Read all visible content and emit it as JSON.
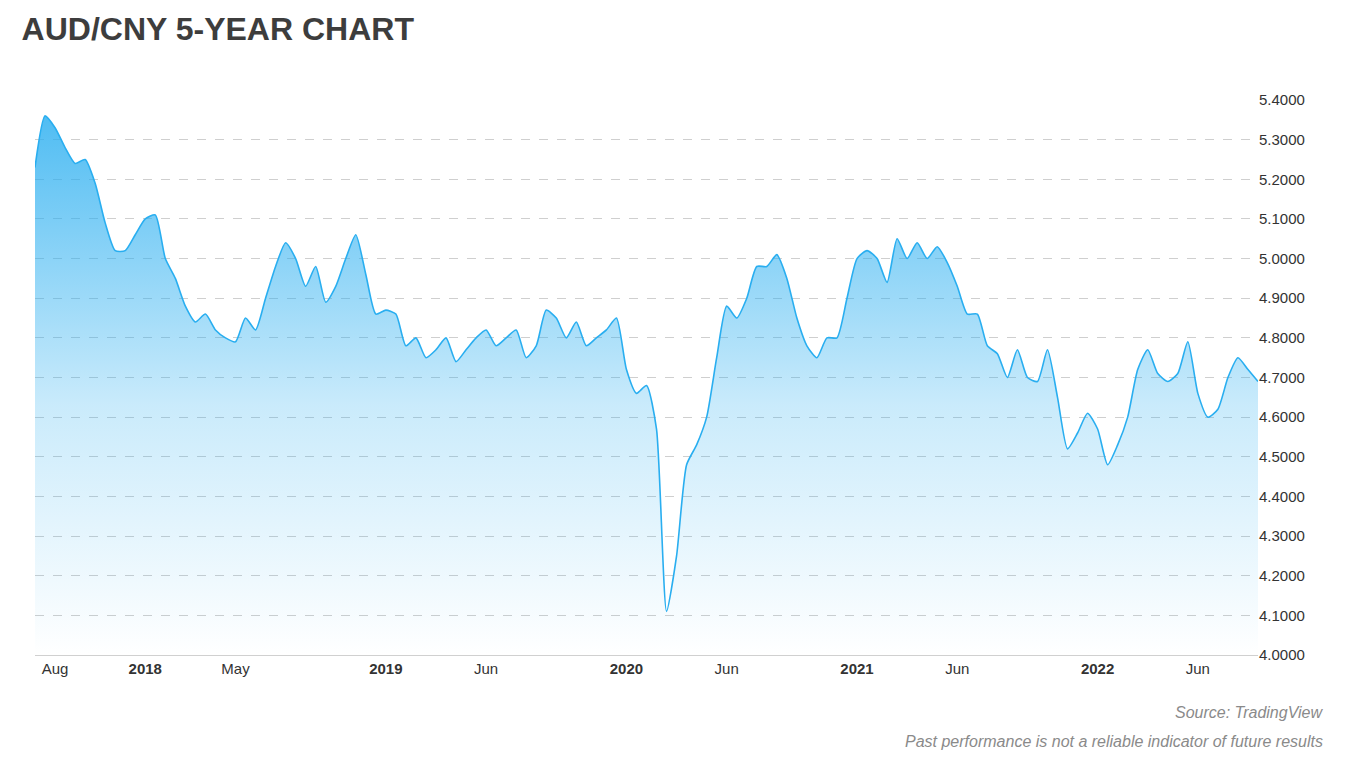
{
  "chart_data": {
    "type": "area",
    "title": "AUD/CNY 5-YEAR CHART",
    "categories": [
      null,
      null,
      "Aug",
      null,
      null,
      null,
      null,
      null,
      null,
      null,
      null,
      "2018",
      null,
      null,
      null,
      null,
      null,
      null,
      null,
      null,
      "May",
      null,
      null,
      null,
      null,
      null,
      null,
      null,
      null,
      null,
      null,
      null,
      null,
      null,
      null,
      "2019",
      null,
      null,
      null,
      null,
      null,
      null,
      null,
      null,
      null,
      "Jun",
      null,
      null,
      null,
      null,
      null,
      null,
      null,
      null,
      null,
      null,
      null,
      null,
      null,
      "2020",
      null,
      null,
      null,
      null,
      null,
      null,
      null,
      null,
      null,
      "Jun",
      null,
      null,
      null,
      null,
      null,
      null,
      null,
      null,
      null,
      null,
      null,
      null,
      "2021",
      null,
      null,
      null,
      null,
      null,
      null,
      null,
      null,
      null,
      "Jun",
      null,
      null,
      null,
      null,
      null,
      null,
      null,
      null,
      null,
      null,
      null,
      null,
      null,
      "2022",
      null,
      null,
      null,
      null,
      null,
      null,
      null,
      null,
      null,
      "Jun",
      null,
      null,
      null,
      null,
      null,
      null
    ],
    "values": [
      5.23,
      5.36,
      5.33,
      5.28,
      5.24,
      5.25,
      5.19,
      5.09,
      5.02,
      5.02,
      5.06,
      5.1,
      5.11,
      5.0,
      4.95,
      4.88,
      4.84,
      4.86,
      4.82,
      4.8,
      4.79,
      4.85,
      4.82,
      4.9,
      4.98,
      5.04,
      5.0,
      4.93,
      4.98,
      4.89,
      4.93,
      5.0,
      5.06,
      4.96,
      4.86,
      4.87,
      4.86,
      4.78,
      4.8,
      4.75,
      4.77,
      4.8,
      4.74,
      4.77,
      4.8,
      4.82,
      4.78,
      4.8,
      4.82,
      4.75,
      4.78,
      4.87,
      4.85,
      4.8,
      4.84,
      4.78,
      4.8,
      4.82,
      4.85,
      4.72,
      4.66,
      4.68,
      4.57,
      4.11,
      4.25,
      4.48,
      4.53,
      4.6,
      4.75,
      4.88,
      4.85,
      4.9,
      4.98,
      4.98,
      5.01,
      4.95,
      4.85,
      4.78,
      4.75,
      4.8,
      4.8,
      4.9,
      5.0,
      5.02,
      5.0,
      4.94,
      5.05,
      5.0,
      5.04,
      5.0,
      5.03,
      4.99,
      4.93,
      4.86,
      4.86,
      4.78,
      4.76,
      4.7,
      4.77,
      4.7,
      4.69,
      4.77,
      4.65,
      4.52,
      4.56,
      4.61,
      4.57,
      4.48,
      4.53,
      4.6,
      4.72,
      4.77,
      4.71,
      4.69,
      4.71,
      4.79,
      4.66,
      4.6,
      4.62,
      4.7,
      4.75,
      4.72,
      4.69
    ],
    "color": "#29aef0",
    "ylim": [
      4.0,
      5.4
    ],
    "yticks": [
      {
        "value": 4.0,
        "label": "4.0000"
      },
      {
        "value": 4.1,
        "label": "4.1000"
      },
      {
        "value": 4.2,
        "label": "4.2000"
      },
      {
        "value": 4.3,
        "label": "4.3000"
      },
      {
        "value": 4.4,
        "label": "4.4000"
      },
      {
        "value": 4.5,
        "label": "4.5000"
      },
      {
        "value": 4.6,
        "label": "4.6000"
      },
      {
        "value": 4.7,
        "label": "4.7000"
      },
      {
        "value": 4.8,
        "label": "4.8000"
      },
      {
        "value": 4.9,
        "label": "4.9000"
      },
      {
        "value": 5.0,
        "label": "5.0000"
      },
      {
        "value": 5.1,
        "label": "5.1000"
      },
      {
        "value": 5.2,
        "label": "5.2000"
      },
      {
        "value": 5.3,
        "label": "5.3000"
      },
      {
        "value": 5.4,
        "label": "5.4000"
      }
    ],
    "grid": true,
    "annotations": [
      "Source: TradingView",
      "Past performance is not a reliable indicator of future results"
    ]
  }
}
